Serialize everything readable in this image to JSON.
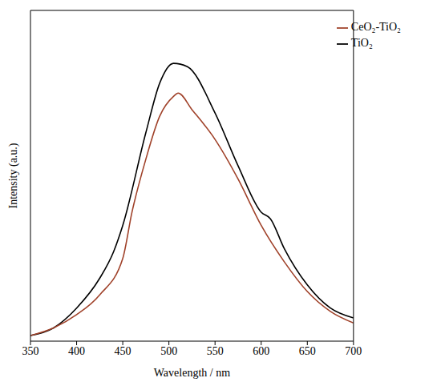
{
  "chart_data": {
    "type": "line",
    "x_label": "Wavelength / nm",
    "y_label": "Intensity (a.u.)",
    "xlim": [
      350,
      700
    ],
    "xticks": [
      350,
      400,
      450,
      500,
      550,
      600,
      650,
      700
    ],
    "ylim": [
      0,
      100
    ],
    "tick_labels": "x",
    "legend": "upper right",
    "grid": false,
    "series": [
      {
        "name": "TiO₂",
        "color": "#000000",
        "x": [
          350,
          375,
          400,
          425,
          440,
          450,
          475,
          490,
          505,
          520,
          550,
          575,
          600,
          610,
          625,
          650,
          675,
          700
        ],
        "values": [
          1.7,
          4,
          10,
          19,
          27,
          35,
          63,
          78,
          84,
          83,
          69,
          53,
          39,
          37,
          28,
          17,
          10,
          7
        ]
      },
      {
        "name": "CeO₂-TiO₂",
        "color": "#a0422a",
        "x": [
          350,
          375,
          400,
          425,
          450,
          460,
          475,
          490,
          505,
          510,
          525,
          550,
          575,
          600,
          625,
          650,
          675,
          700
        ],
        "values": [
          1.7,
          4,
          8,
          14,
          25,
          39,
          55,
          68,
          74,
          75,
          70,
          61,
          49,
          35,
          24,
          15,
          9,
          5.5
        ]
      }
    ]
  }
}
